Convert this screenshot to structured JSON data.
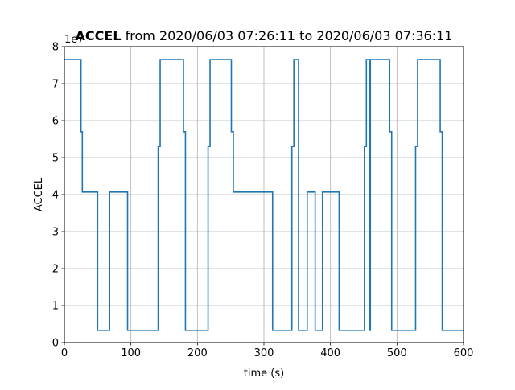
{
  "chart_data": {
    "type": "line",
    "title_bold": "ACCEL",
    "title_rest": " from 2020/06/03 07:26:11 to 2020/06/03 07:36:11",
    "xlabel": "time (s)",
    "ylabel": "ACCEL",
    "offset_label": "1e7",
    "xlim": [
      0,
      600
    ],
    "ylim": [
      0,
      8
    ],
    "xticks": [
      0,
      100,
      200,
      300,
      400,
      500,
      600
    ],
    "yticks": [
      0,
      1,
      2,
      3,
      4,
      5,
      6,
      7,
      8
    ],
    "grid": true,
    "line_color": "#1f77b4",
    "step": "post",
    "series": [
      {
        "points": [
          [
            0,
            7.65
          ],
          [
            25,
            7.65
          ],
          [
            25,
            5.7
          ],
          [
            27,
            5.7
          ],
          [
            27,
            4.07
          ],
          [
            50,
            4.07
          ],
          [
            50,
            0.33
          ],
          [
            68,
            0.33
          ],
          [
            68,
            4.07
          ],
          [
            95,
            4.07
          ],
          [
            95,
            0.33
          ],
          [
            141,
            0.33
          ],
          [
            141,
            5.3
          ],
          [
            144,
            5.3
          ],
          [
            144,
            7.65
          ],
          [
            179,
            7.65
          ],
          [
            179,
            5.7
          ],
          [
            182,
            5.7
          ],
          [
            182,
            0.33
          ],
          [
            216,
            0.33
          ],
          [
            216,
            5.3
          ],
          [
            219,
            5.3
          ],
          [
            219,
            7.65
          ],
          [
            251,
            7.65
          ],
          [
            251,
            5.7
          ],
          [
            254,
            5.7
          ],
          [
            254,
            4.07
          ],
          [
            313,
            4.07
          ],
          [
            313,
            0.33
          ],
          [
            342,
            0.33
          ],
          [
            342,
            5.3
          ],
          [
            345,
            5.3
          ],
          [
            345,
            7.65
          ],
          [
            352,
            7.65
          ],
          [
            352,
            0.33
          ],
          [
            365,
            0.33
          ],
          [
            365,
            4.07
          ],
          [
            377,
            4.07
          ],
          [
            377,
            0.33
          ],
          [
            388,
            0.33
          ],
          [
            388,
            4.07
          ],
          [
            413,
            4.07
          ],
          [
            413,
            0.33
          ],
          [
            451,
            0.33
          ],
          [
            451,
            5.3
          ],
          [
            454,
            5.3
          ],
          [
            454,
            7.65
          ],
          [
            459,
            7.65
          ],
          [
            459,
            0.33
          ],
          [
            460,
            0.33
          ],
          [
            460,
            7.65
          ],
          [
            489,
            7.65
          ],
          [
            489,
            5.7
          ],
          [
            492,
            5.7
          ],
          [
            492,
            0.33
          ],
          [
            528,
            0.33
          ],
          [
            528,
            5.3
          ],
          [
            531,
            5.3
          ],
          [
            531,
            7.65
          ],
          [
            565,
            7.65
          ],
          [
            565,
            5.7
          ],
          [
            568,
            5.7
          ],
          [
            568,
            0.33
          ],
          [
            600,
            0.33
          ]
        ]
      }
    ]
  }
}
